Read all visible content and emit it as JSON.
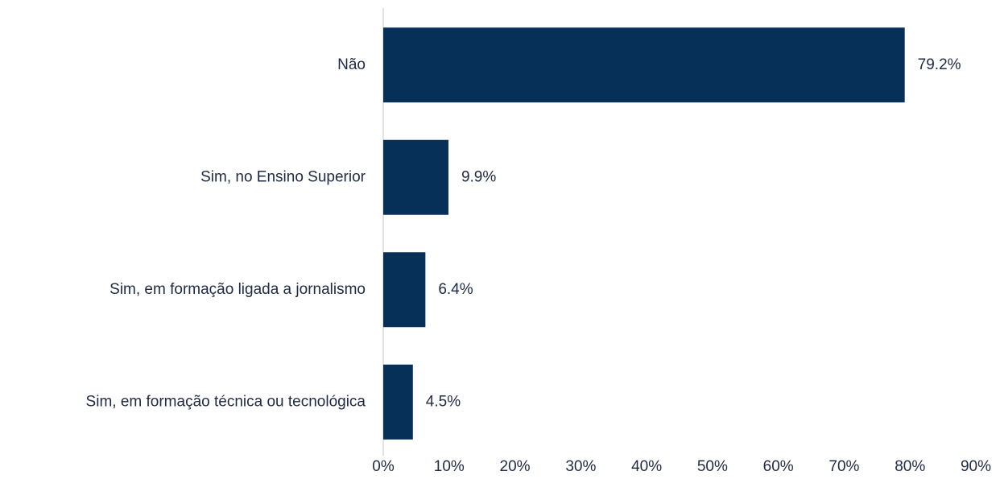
{
  "chart_data": {
    "type": "hbar",
    "categories": [
      "Não",
      "Sim, no Ensino Superior",
      "Sim, em formação ligada a jornalismo",
      "Sim, em formação técnica ou tecnológica"
    ],
    "values": [
      79.2,
      9.9,
      6.4,
      4.5
    ],
    "value_labels": [
      "79.2%",
      "9.9%",
      "6.4%",
      "4.5%"
    ],
    "color": "#073059",
    "xlim": [
      0,
      90
    ],
    "xticks": [
      {
        "value": 0,
        "label": "0%"
      },
      {
        "value": 10,
        "label": "10%"
      },
      {
        "value": 20,
        "label": "20%"
      },
      {
        "value": 30,
        "label": "30%"
      },
      {
        "value": 40,
        "label": "40%"
      },
      {
        "value": 50,
        "label": "50%"
      },
      {
        "value": 60,
        "label": "60%"
      },
      {
        "value": 70,
        "label": "70%"
      },
      {
        "value": 80,
        "label": "80%"
      },
      {
        "value": 90,
        "label": "90%"
      }
    ]
  }
}
